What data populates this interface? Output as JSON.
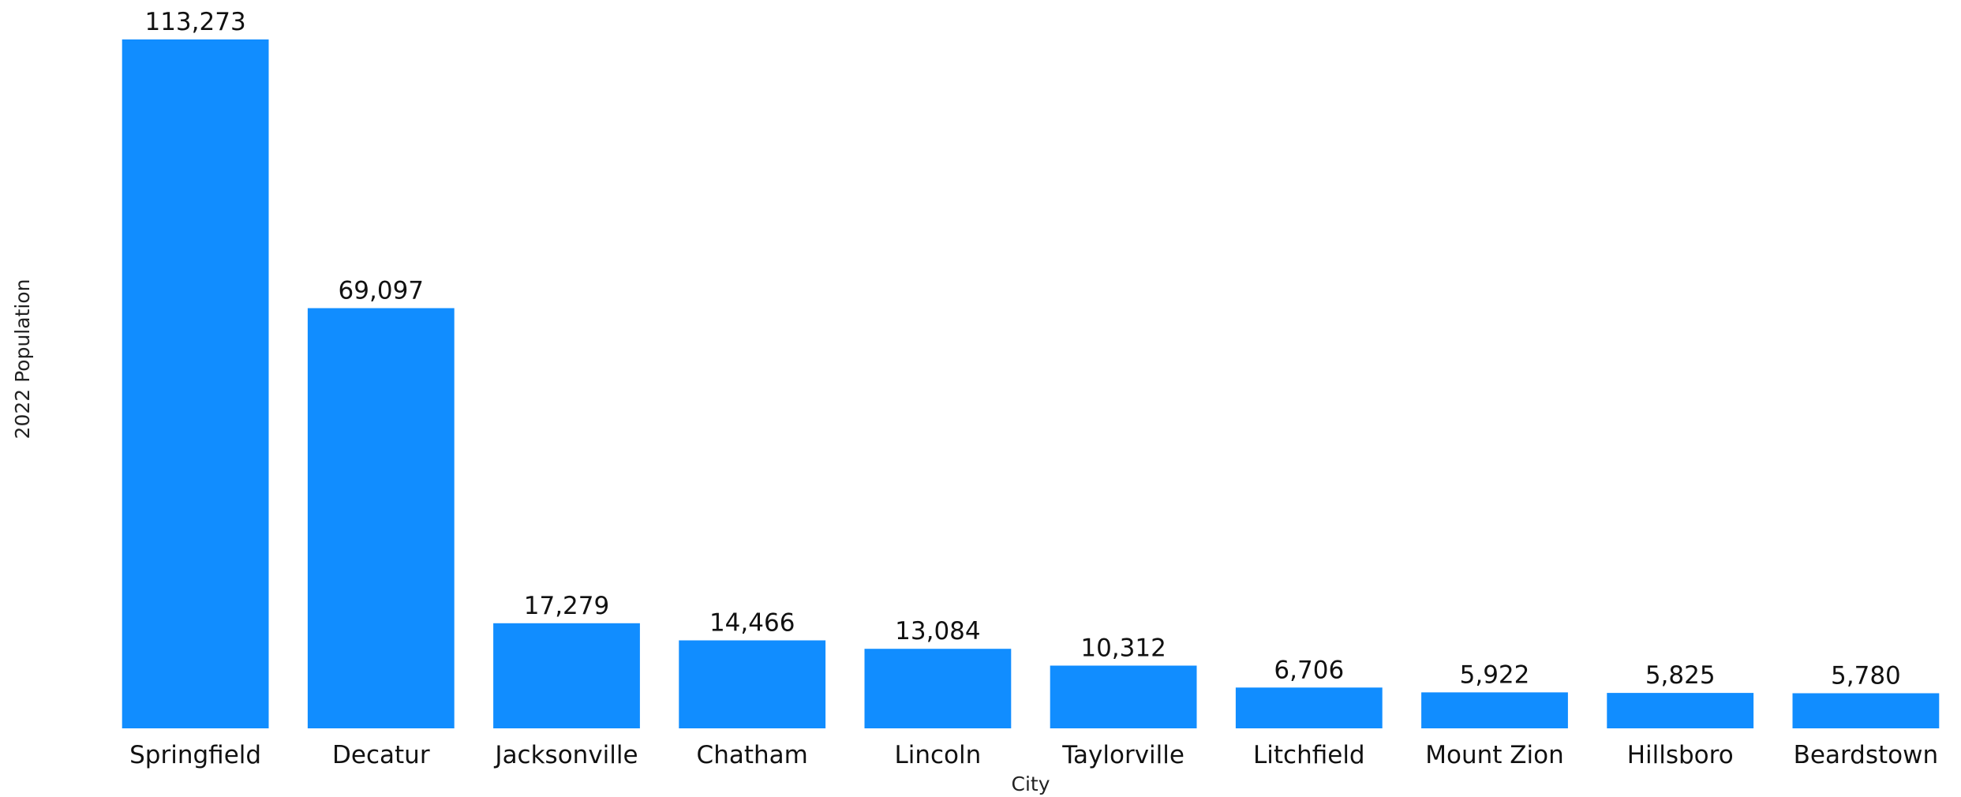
{
  "chart_data": {
    "type": "bar",
    "title": "",
    "xlabel": "City",
    "ylabel": "2022 Population",
    "categories": [
      "Springfield",
      "Decatur",
      "Jacksonville",
      "Chatham",
      "Lincoln",
      "Taylorville",
      "Litchfield",
      "Mount Zion",
      "Hillsboro",
      "Beardstown"
    ],
    "values": [
      113273,
      69097,
      17279,
      14466,
      13084,
      10312,
      6706,
      5922,
      5825,
      5780
    ],
    "value_labels": [
      "113,273",
      "69,097",
      "17,279",
      "14,466",
      "13,084",
      "10,312",
      "6,706",
      "5,922",
      "5,825",
      "5,780"
    ],
    "ylim": [
      0,
      113273
    ],
    "grid": false,
    "legend": "none",
    "bar_color": "#118DFF"
  }
}
